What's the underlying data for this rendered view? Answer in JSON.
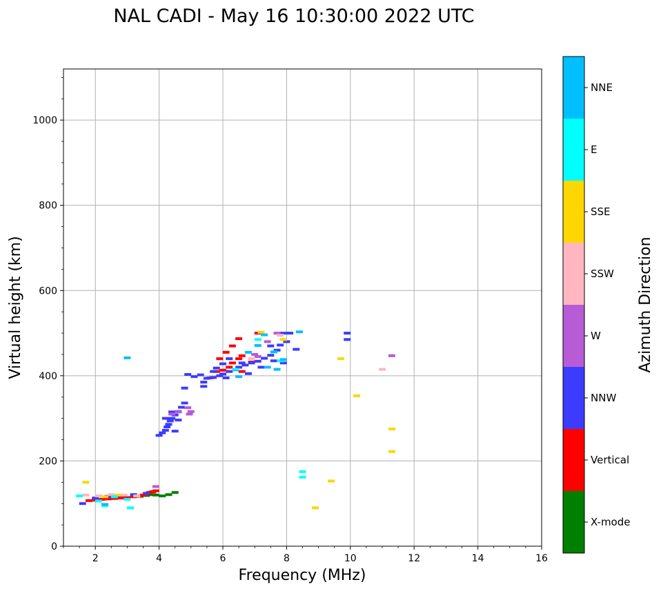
{
  "chart_data": {
    "type": "scatter",
    "title": "NAL CADI - May 16 10:30:00 2022 UTC",
    "xlabel": "Frequency (MHz)",
    "ylabel": "Virtual height (km)",
    "xlim": [
      1,
      16
    ],
    "ylim": [
      0,
      1120
    ],
    "xticks": [
      2,
      4,
      6,
      8,
      10,
      12,
      14,
      16
    ],
    "xtick_labels": [
      "2",
      "4",
      "6",
      "8",
      "10",
      "12",
      "14",
      "16"
    ],
    "yticks": [
      0,
      200,
      400,
      600,
      800,
      1000
    ],
    "ytick_labels": [
      "0",
      "200",
      "400",
      "600",
      "800",
      "1000"
    ],
    "grid": true,
    "colorbar": {
      "label": "Azimuth Direction",
      "categories": [
        {
          "name": "X-mode",
          "color": "#008000"
        },
        {
          "name": "Vertical",
          "color": "#ff0000"
        },
        {
          "name": "NNW",
          "color": "#3c3cff"
        },
        {
          "name": "W",
          "color": "#b75bd6"
        },
        {
          "name": "SSW",
          "color": "#ffb6c1"
        },
        {
          "name": "SSE",
          "color": "#ffd700"
        },
        {
          "name": "E",
          "color": "#00ffff"
        },
        {
          "name": "NNE",
          "color": "#00bfff"
        }
      ]
    },
    "series": [
      {
        "name": "X-mode",
        "points": [
          [
            3.4,
            117
          ],
          [
            3.6,
            119
          ],
          [
            3.8,
            121
          ],
          [
            3.9,
            120
          ],
          [
            4.1,
            118
          ],
          [
            4.3,
            121
          ],
          [
            4.5,
            126
          ]
        ]
      },
      {
        "name": "Vertical",
        "points": [
          [
            1.8,
            107
          ],
          [
            2.0,
            108
          ],
          [
            2.2,
            110
          ],
          [
            2.4,
            111
          ],
          [
            2.6,
            112
          ],
          [
            2.8,
            113
          ],
          [
            3.0,
            114
          ],
          [
            3.2,
            116
          ],
          [
            3.4,
            118
          ],
          [
            3.5,
            120
          ],
          [
            3.6,
            123
          ],
          [
            3.7,
            126
          ],
          [
            3.8,
            128
          ],
          [
            3.9,
            130
          ],
          [
            5.6,
            395
          ],
          [
            5.8,
            410
          ],
          [
            6.0,
            413
          ],
          [
            6.2,
            420
          ],
          [
            6.3,
            430
          ],
          [
            6.5,
            440
          ],
          [
            6.6,
            447
          ],
          [
            6.9,
            432
          ],
          [
            6.1,
            455
          ],
          [
            6.3,
            470
          ],
          [
            5.9,
            440
          ],
          [
            6.5,
            487
          ],
          [
            6.6,
            410
          ],
          [
            7.1,
            500
          ]
        ]
      },
      {
        "name": "NNW",
        "points": [
          [
            1.6,
            100
          ],
          [
            2.0,
            113
          ],
          [
            2.4,
            117
          ],
          [
            2.8,
            119
          ],
          [
            3.2,
            121
          ],
          [
            3.6,
            124
          ],
          [
            4.0,
            260
          ],
          [
            4.1,
            266
          ],
          [
            4.2,
            272
          ],
          [
            4.25,
            280
          ],
          [
            4.3,
            286
          ],
          [
            4.35,
            294
          ],
          [
            4.4,
            300
          ],
          [
            4.5,
            308
          ],
          [
            4.6,
            316
          ],
          [
            4.7,
            326
          ],
          [
            4.8,
            336
          ],
          [
            4.2,
            300
          ],
          [
            4.4,
            315
          ],
          [
            4.6,
            296
          ],
          [
            4.5,
            270
          ],
          [
            4.8,
            371
          ],
          [
            4.9,
            403
          ],
          [
            5.1,
            398
          ],
          [
            5.3,
            402
          ],
          [
            5.4,
            385
          ],
          [
            5.5,
            394
          ],
          [
            5.7,
            396
          ],
          [
            5.9,
            400
          ],
          [
            6.0,
            404
          ],
          [
            6.2,
            410
          ],
          [
            6.4,
            414
          ],
          [
            6.5,
            420
          ],
          [
            6.7,
            425
          ],
          [
            6.9,
            430
          ],
          [
            7.1,
            434
          ],
          [
            7.3,
            441
          ],
          [
            7.5,
            448
          ],
          [
            7.7,
            460
          ],
          [
            7.8,
            472
          ],
          [
            8.0,
            480
          ],
          [
            8.3,
            462
          ],
          [
            8.1,
            500
          ],
          [
            7.9,
            500
          ],
          [
            7.5,
            470
          ],
          [
            7.2,
            420
          ],
          [
            7.6,
            435
          ],
          [
            7.9,
            430
          ],
          [
            6.8,
            405
          ],
          [
            5.4,
            375
          ],
          [
            5.7,
            410
          ],
          [
            6.1,
            395
          ],
          [
            6.0,
            428
          ],
          [
            6.2,
            440
          ],
          [
            5.8,
            418
          ],
          [
            6.6,
            430
          ],
          [
            9.9,
            485
          ],
          [
            9.9,
            500
          ]
        ]
      },
      {
        "name": "W",
        "points": [
          [
            4.4,
            310
          ],
          [
            4.6,
            315
          ],
          [
            4.9,
            325
          ],
          [
            4.95,
            310
          ],
          [
            5.0,
            316
          ],
          [
            3.9,
            140
          ],
          [
            7.0,
            450
          ],
          [
            7.4,
            480
          ],
          [
            7.7,
            500
          ],
          [
            7.1,
            445
          ],
          [
            11.3,
            447
          ]
        ]
      },
      {
        "name": "SSW",
        "points": [
          [
            1.7,
            120
          ],
          [
            2.1,
            118
          ],
          [
            2.5,
            121
          ],
          [
            2.9,
            120
          ],
          [
            3.3,
            118
          ],
          [
            6.9,
            440
          ],
          [
            7.8,
            495
          ],
          [
            11.0,
            415
          ]
        ]
      },
      {
        "name": "SSE",
        "points": [
          [
            1.7,
            150
          ],
          [
            2.3,
            116
          ],
          [
            2.7,
            120
          ],
          [
            7.2,
            502
          ],
          [
            7.9,
            485
          ],
          [
            9.7,
            440
          ],
          [
            10.2,
            353
          ],
          [
            11.3,
            275
          ],
          [
            11.3,
            222
          ],
          [
            9.4,
            153
          ],
          [
            8.9,
            90
          ]
        ]
      },
      {
        "name": "E",
        "points": [
          [
            1.5,
            118
          ],
          [
            2.1,
            106
          ],
          [
            2.6,
            116
          ],
          [
            3.0,
            110
          ],
          [
            3.1,
            90
          ],
          [
            6.4,
            415
          ],
          [
            7.1,
            485
          ],
          [
            7.8,
            435
          ],
          [
            8.5,
            175
          ],
          [
            8.5,
            162
          ],
          [
            2.3,
            95
          ]
        ]
      },
      {
        "name": "NNE",
        "points": [
          [
            3.0,
            442
          ],
          [
            2.3,
            98
          ],
          [
            6.8,
            455
          ],
          [
            7.1,
            471
          ],
          [
            7.3,
            496
          ],
          [
            7.6,
            456
          ],
          [
            7.4,
            420
          ],
          [
            7.7,
            415
          ],
          [
            7.9,
            438
          ],
          [
            8.4,
            503
          ],
          [
            6.5,
            398
          ]
        ]
      }
    ]
  }
}
